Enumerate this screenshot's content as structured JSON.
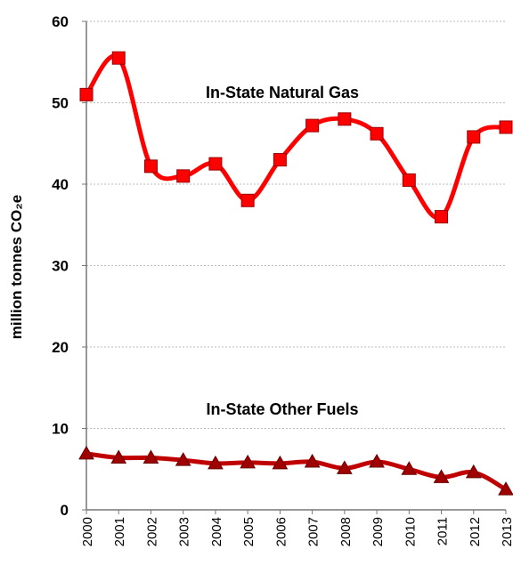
{
  "chart_data": {
    "type": "line",
    "y_label": "million tonnes CO₂e",
    "categories": [
      "2000",
      "2001",
      "2002",
      "2003",
      "2004",
      "2005",
      "2006",
      "2007",
      "2008",
      "2009",
      "2010",
      "2011",
      "2012",
      "2013"
    ],
    "series": [
      {
        "name": "In-State Natural Gas",
        "color": "#ff0000",
        "marker": "square",
        "values": [
          51,
          55.5,
          42.2,
          41,
          42.5,
          38,
          43,
          47.2,
          48,
          46.2,
          40.5,
          36,
          45.8,
          47
        ]
      },
      {
        "name": "In-State Other Fuels",
        "color": "#c00000",
        "marker": "triangle",
        "values": [
          6.9,
          6.4,
          6.4,
          6.1,
          5.7,
          5.8,
          5.7,
          5.9,
          5.1,
          5.9,
          5.0,
          4.0,
          4.6,
          2.5
        ]
      }
    ],
    "ylim": [
      0,
      60
    ],
    "yticks": [
      0,
      10,
      20,
      30,
      40,
      50,
      60
    ],
    "grid": true
  }
}
